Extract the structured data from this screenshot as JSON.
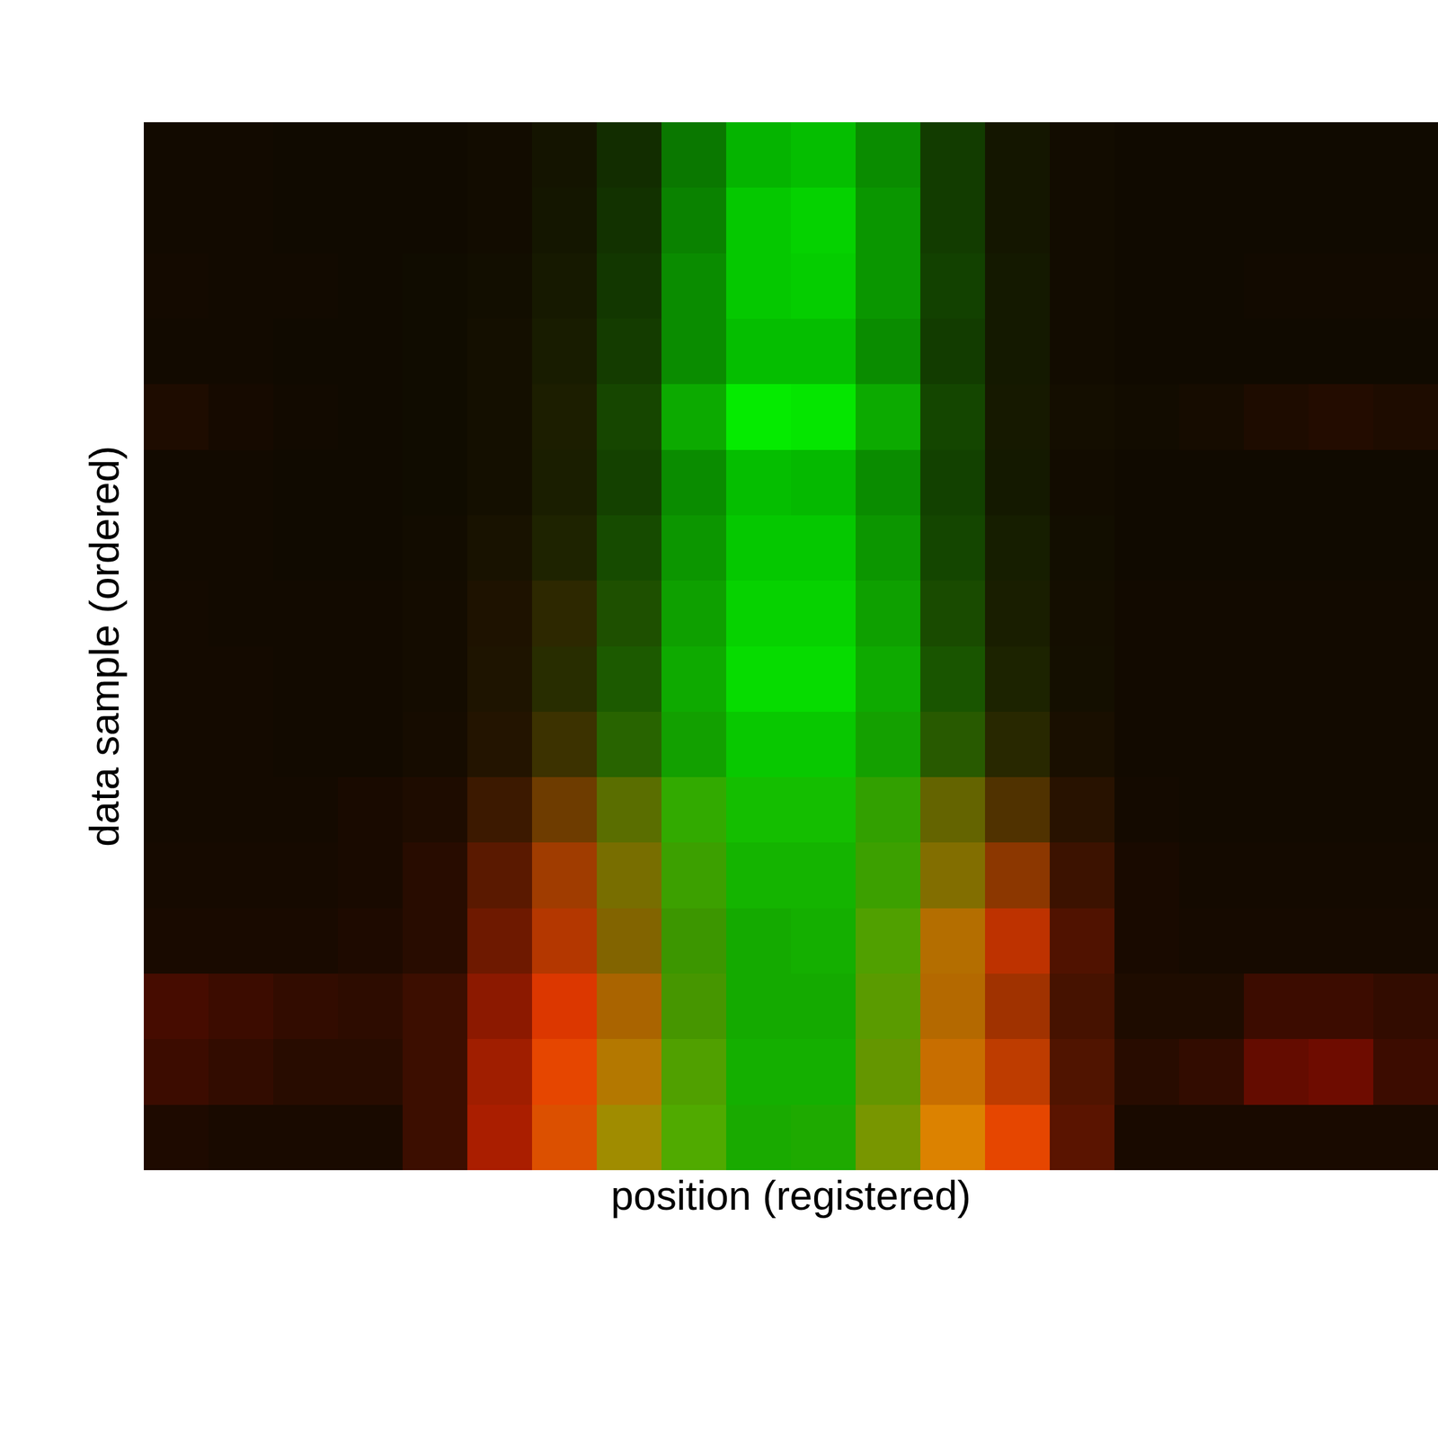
{
  "chart_data": {
    "type": "image",
    "x_label": "position (registered)",
    "y_label": "data sample (ordered)",
    "tick_labels": false,
    "green": [
      [
        10,
        10,
        10,
        10,
        10,
        12,
        20,
        45,
        120,
        180,
        190,
        140,
        60,
        22,
        12,
        10,
        10,
        10,
        10,
        10
      ],
      [
        10,
        10,
        10,
        10,
        10,
        12,
        22,
        50,
        130,
        200,
        210,
        150,
        60,
        22,
        12,
        10,
        10,
        10,
        10,
        10
      ],
      [
        10,
        10,
        10,
        10,
        12,
        14,
        25,
        55,
        140,
        200,
        205,
        150,
        65,
        25,
        12,
        10,
        10,
        10,
        10,
        10
      ],
      [
        10,
        10,
        10,
        10,
        12,
        15,
        28,
        60,
        140,
        190,
        190,
        140,
        60,
        25,
        12,
        10,
        10,
        10,
        10,
        10
      ],
      [
        12,
        10,
        10,
        10,
        12,
        15,
        30,
        70,
        170,
        235,
        230,
        170,
        70,
        25,
        14,
        12,
        12,
        12,
        12,
        12
      ],
      [
        10,
        10,
        10,
        10,
        12,
        15,
        30,
        65,
        140,
        190,
        185,
        140,
        65,
        25,
        12,
        10,
        10,
        10,
        10,
        10
      ],
      [
        10,
        10,
        10,
        10,
        12,
        18,
        35,
        75,
        150,
        200,
        200,
        150,
        70,
        30,
        14,
        10,
        10,
        10,
        10,
        10
      ],
      [
        10,
        10,
        10,
        10,
        12,
        18,
        40,
        80,
        160,
        210,
        210,
        160,
        75,
        30,
        14,
        10,
        10,
        10,
        10,
        10
      ],
      [
        10,
        10,
        10,
        10,
        12,
        20,
        45,
        90,
        170,
        220,
        220,
        170,
        85,
        35,
        15,
        10,
        10,
        10,
        10,
        10
      ],
      [
        10,
        10,
        10,
        10,
        12,
        20,
        50,
        100,
        160,
        200,
        200,
        160,
        90,
        40,
        15,
        10,
        10,
        10,
        10,
        10
      ],
      [
        10,
        10,
        10,
        10,
        12,
        25,
        60,
        110,
        170,
        190,
        190,
        160,
        100,
        50,
        18,
        10,
        10,
        10,
        10,
        10
      ],
      [
        10,
        10,
        10,
        10,
        12,
        25,
        60,
        110,
        160,
        180,
        180,
        160,
        110,
        55,
        18,
        10,
        10,
        10,
        10,
        10
      ],
      [
        10,
        10,
        10,
        10,
        12,
        25,
        55,
        100,
        150,
        170,
        175,
        160,
        110,
        50,
        18,
        10,
        10,
        10,
        10,
        10
      ],
      [
        12,
        12,
        12,
        12,
        14,
        25,
        55,
        100,
        150,
        170,
        170,
        155,
        105,
        50,
        18,
        12,
        12,
        12,
        12,
        12
      ],
      [
        12,
        12,
        12,
        12,
        14,
        30,
        70,
        120,
        160,
        175,
        175,
        150,
        110,
        60,
        20,
        12,
        12,
        12,
        12,
        12
      ],
      [
        10,
        10,
        10,
        10,
        14,
        30,
        80,
        140,
        170,
        170,
        170,
        150,
        130,
        70,
        20,
        10,
        10,
        10,
        10,
        10
      ]
    ],
    "red": [
      [
        18,
        18,
        16,
        16,
        16,
        18,
        20,
        18,
        10,
        5,
        5,
        10,
        18,
        20,
        18,
        16,
        16,
        16,
        16,
        16
      ],
      [
        18,
        18,
        16,
        16,
        16,
        18,
        20,
        18,
        10,
        5,
        5,
        10,
        18,
        20,
        18,
        16,
        16,
        16,
        16,
        16
      ],
      [
        20,
        18,
        18,
        16,
        16,
        18,
        22,
        18,
        10,
        5,
        5,
        10,
        18,
        20,
        18,
        16,
        16,
        18,
        18,
        18
      ],
      [
        18,
        18,
        16,
        16,
        16,
        20,
        24,
        20,
        10,
        5,
        5,
        10,
        18,
        20,
        18,
        16,
        16,
        16,
        16,
        16
      ],
      [
        30,
        22,
        18,
        16,
        16,
        20,
        28,
        22,
        12,
        5,
        5,
        12,
        20,
        22,
        20,
        18,
        22,
        30,
        35,
        30
      ],
      [
        18,
        18,
        16,
        16,
        16,
        20,
        26,
        20,
        10,
        5,
        5,
        10,
        18,
        20,
        18,
        16,
        16,
        16,
        16,
        16
      ],
      [
        18,
        18,
        16,
        16,
        18,
        24,
        30,
        22,
        12,
        5,
        5,
        12,
        20,
        22,
        18,
        16,
        16,
        16,
        16,
        16
      ],
      [
        20,
        18,
        18,
        18,
        20,
        30,
        45,
        30,
        14,
        6,
        6,
        14,
        25,
        25,
        20,
        18,
        18,
        18,
        18,
        18
      ],
      [
        20,
        20,
        18,
        18,
        20,
        30,
        40,
        28,
        14,
        6,
        6,
        14,
        25,
        28,
        20,
        18,
        18,
        18,
        18,
        18
      ],
      [
        20,
        20,
        18,
        18,
        22,
        35,
        60,
        40,
        18,
        8,
        8,
        20,
        40,
        40,
        25,
        18,
        18,
        18,
        18,
        18
      ],
      [
        20,
        20,
        20,
        25,
        30,
        60,
        110,
        90,
        50,
        20,
        20,
        50,
        100,
        80,
        40,
        20,
        18,
        18,
        18,
        18
      ],
      [
        22,
        22,
        22,
        25,
        40,
        90,
        160,
        120,
        60,
        20,
        20,
        60,
        130,
        140,
        60,
        25,
        20,
        20,
        20,
        20
      ],
      [
        25,
        25,
        25,
        30,
        40,
        110,
        180,
        130,
        60,
        20,
        20,
        80,
        180,
        190,
        80,
        25,
        22,
        22,
        22,
        22
      ],
      [
        70,
        60,
        50,
        45,
        60,
        140,
        220,
        170,
        70,
        20,
        20,
        90,
        180,
        160,
        70,
        30,
        30,
        60,
        60,
        50
      ],
      [
        60,
        50,
        40,
        40,
        60,
        160,
        230,
        180,
        80,
        20,
        20,
        100,
        200,
        190,
        80,
        40,
        50,
        100,
        110,
        60
      ],
      [
        30,
        25,
        25,
        25,
        60,
        170,
        220,
        160,
        80,
        25,
        30,
        120,
        220,
        230,
        90,
        25,
        25,
        25,
        25,
        25
      ]
    ]
  }
}
